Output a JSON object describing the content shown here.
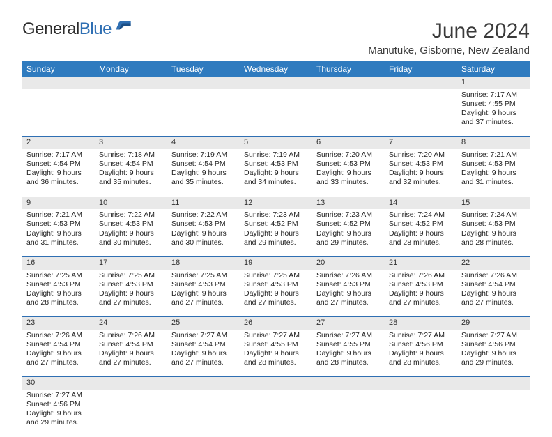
{
  "logo": {
    "part1": "General",
    "part2": "Blue"
  },
  "title": "June 2024",
  "location": "Manutuke, Gisborne, New Zealand",
  "colors": {
    "header_bg": "#2f7bbf",
    "header_text": "#ffffff",
    "daynum_bg": "#e9e9e9",
    "rule": "#2f6fb3",
    "text": "#222222",
    "logo_dark": "#2c2c2c",
    "logo_blue": "#2f6fb3"
  },
  "font": {
    "family": "Arial",
    "body_pt": 10.5,
    "header_pt": 12,
    "title_pt": 30,
    "location_pt": 15
  },
  "weekdays": [
    "Sunday",
    "Monday",
    "Tuesday",
    "Wednesday",
    "Thursday",
    "Friday",
    "Saturday"
  ],
  "weeks": [
    [
      null,
      null,
      null,
      null,
      null,
      null,
      {
        "n": "1",
        "sr": "Sunrise: 7:17 AM",
        "ss": "Sunset: 4:55 PM",
        "d1": "Daylight: 9 hours",
        "d2": "and 37 minutes."
      }
    ],
    [
      {
        "n": "2",
        "sr": "Sunrise: 7:17 AM",
        "ss": "Sunset: 4:54 PM",
        "d1": "Daylight: 9 hours",
        "d2": "and 36 minutes."
      },
      {
        "n": "3",
        "sr": "Sunrise: 7:18 AM",
        "ss": "Sunset: 4:54 PM",
        "d1": "Daylight: 9 hours",
        "d2": "and 35 minutes."
      },
      {
        "n": "4",
        "sr": "Sunrise: 7:19 AM",
        "ss": "Sunset: 4:54 PM",
        "d1": "Daylight: 9 hours",
        "d2": "and 35 minutes."
      },
      {
        "n": "5",
        "sr": "Sunrise: 7:19 AM",
        "ss": "Sunset: 4:53 PM",
        "d1": "Daylight: 9 hours",
        "d2": "and 34 minutes."
      },
      {
        "n": "6",
        "sr": "Sunrise: 7:20 AM",
        "ss": "Sunset: 4:53 PM",
        "d1": "Daylight: 9 hours",
        "d2": "and 33 minutes."
      },
      {
        "n": "7",
        "sr": "Sunrise: 7:20 AM",
        "ss": "Sunset: 4:53 PM",
        "d1": "Daylight: 9 hours",
        "d2": "and 32 minutes."
      },
      {
        "n": "8",
        "sr": "Sunrise: 7:21 AM",
        "ss": "Sunset: 4:53 PM",
        "d1": "Daylight: 9 hours",
        "d2": "and 31 minutes."
      }
    ],
    [
      {
        "n": "9",
        "sr": "Sunrise: 7:21 AM",
        "ss": "Sunset: 4:53 PM",
        "d1": "Daylight: 9 hours",
        "d2": "and 31 minutes."
      },
      {
        "n": "10",
        "sr": "Sunrise: 7:22 AM",
        "ss": "Sunset: 4:53 PM",
        "d1": "Daylight: 9 hours",
        "d2": "and 30 minutes."
      },
      {
        "n": "11",
        "sr": "Sunrise: 7:22 AM",
        "ss": "Sunset: 4:53 PM",
        "d1": "Daylight: 9 hours",
        "d2": "and 30 minutes."
      },
      {
        "n": "12",
        "sr": "Sunrise: 7:23 AM",
        "ss": "Sunset: 4:52 PM",
        "d1": "Daylight: 9 hours",
        "d2": "and 29 minutes."
      },
      {
        "n": "13",
        "sr": "Sunrise: 7:23 AM",
        "ss": "Sunset: 4:52 PM",
        "d1": "Daylight: 9 hours",
        "d2": "and 29 minutes."
      },
      {
        "n": "14",
        "sr": "Sunrise: 7:24 AM",
        "ss": "Sunset: 4:52 PM",
        "d1": "Daylight: 9 hours",
        "d2": "and 28 minutes."
      },
      {
        "n": "15",
        "sr": "Sunrise: 7:24 AM",
        "ss": "Sunset: 4:53 PM",
        "d1": "Daylight: 9 hours",
        "d2": "and 28 minutes."
      }
    ],
    [
      {
        "n": "16",
        "sr": "Sunrise: 7:25 AM",
        "ss": "Sunset: 4:53 PM",
        "d1": "Daylight: 9 hours",
        "d2": "and 28 minutes."
      },
      {
        "n": "17",
        "sr": "Sunrise: 7:25 AM",
        "ss": "Sunset: 4:53 PM",
        "d1": "Daylight: 9 hours",
        "d2": "and 27 minutes."
      },
      {
        "n": "18",
        "sr": "Sunrise: 7:25 AM",
        "ss": "Sunset: 4:53 PM",
        "d1": "Daylight: 9 hours",
        "d2": "and 27 minutes."
      },
      {
        "n": "19",
        "sr": "Sunrise: 7:25 AM",
        "ss": "Sunset: 4:53 PM",
        "d1": "Daylight: 9 hours",
        "d2": "and 27 minutes."
      },
      {
        "n": "20",
        "sr": "Sunrise: 7:26 AM",
        "ss": "Sunset: 4:53 PM",
        "d1": "Daylight: 9 hours",
        "d2": "and 27 minutes."
      },
      {
        "n": "21",
        "sr": "Sunrise: 7:26 AM",
        "ss": "Sunset: 4:53 PM",
        "d1": "Daylight: 9 hours",
        "d2": "and 27 minutes."
      },
      {
        "n": "22",
        "sr": "Sunrise: 7:26 AM",
        "ss": "Sunset: 4:54 PM",
        "d1": "Daylight: 9 hours",
        "d2": "and 27 minutes."
      }
    ],
    [
      {
        "n": "23",
        "sr": "Sunrise: 7:26 AM",
        "ss": "Sunset: 4:54 PM",
        "d1": "Daylight: 9 hours",
        "d2": "and 27 minutes."
      },
      {
        "n": "24",
        "sr": "Sunrise: 7:26 AM",
        "ss": "Sunset: 4:54 PM",
        "d1": "Daylight: 9 hours",
        "d2": "and 27 minutes."
      },
      {
        "n": "25",
        "sr": "Sunrise: 7:27 AM",
        "ss": "Sunset: 4:54 PM",
        "d1": "Daylight: 9 hours",
        "d2": "and 27 minutes."
      },
      {
        "n": "26",
        "sr": "Sunrise: 7:27 AM",
        "ss": "Sunset: 4:55 PM",
        "d1": "Daylight: 9 hours",
        "d2": "and 28 minutes."
      },
      {
        "n": "27",
        "sr": "Sunrise: 7:27 AM",
        "ss": "Sunset: 4:55 PM",
        "d1": "Daylight: 9 hours",
        "d2": "and 28 minutes."
      },
      {
        "n": "28",
        "sr": "Sunrise: 7:27 AM",
        "ss": "Sunset: 4:56 PM",
        "d1": "Daylight: 9 hours",
        "d2": "and 28 minutes."
      },
      {
        "n": "29",
        "sr": "Sunrise: 7:27 AM",
        "ss": "Sunset: 4:56 PM",
        "d1": "Daylight: 9 hours",
        "d2": "and 29 minutes."
      }
    ],
    [
      {
        "n": "30",
        "sr": "Sunrise: 7:27 AM",
        "ss": "Sunset: 4:56 PM",
        "d1": "Daylight: 9 hours",
        "d2": "and 29 minutes."
      },
      null,
      null,
      null,
      null,
      null,
      null
    ]
  ]
}
